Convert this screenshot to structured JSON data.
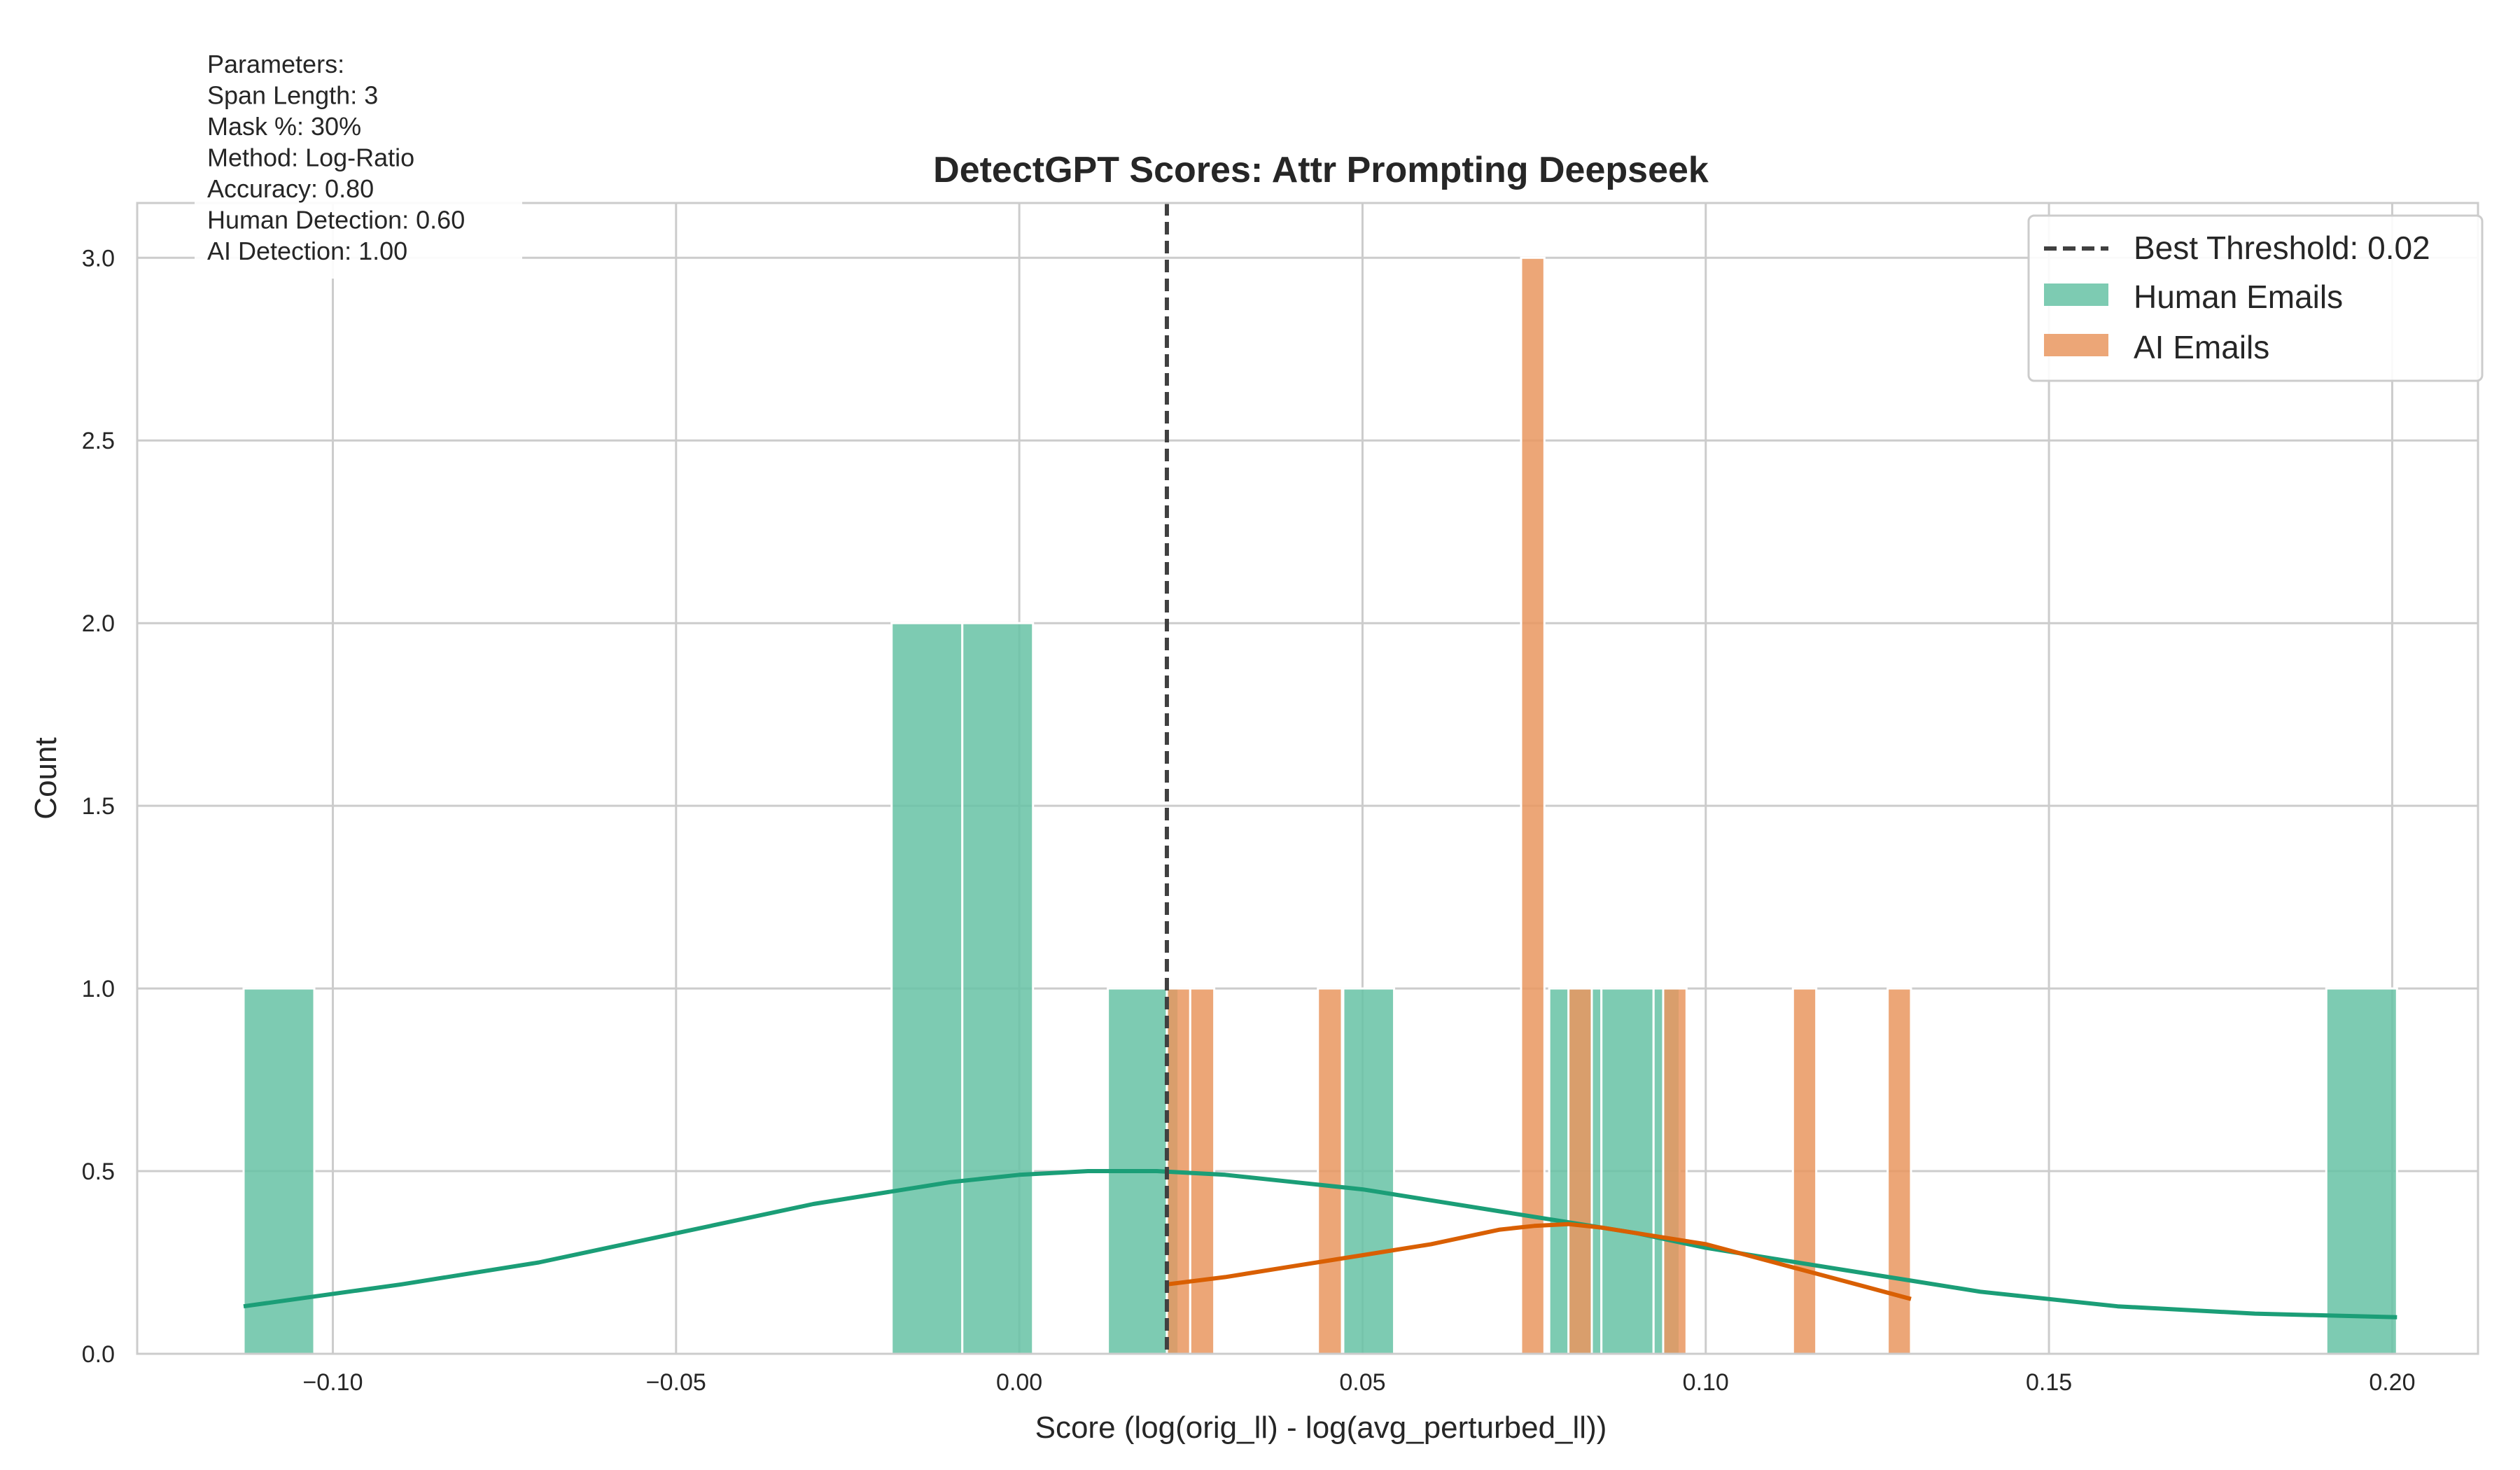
{
  "chart_data": {
    "type": "bar",
    "title": "DetectGPT Scores: Attr Prompting Deepseek",
    "xlabel": "Score (log(orig_ll) - log(avg_perturbed_ll))",
    "ylabel": "Count",
    "xlim": [
      -0.1285,
      0.2125
    ],
    "ylim": [
      0,
      3.15
    ],
    "grid": true,
    "legend_position": "top-right",
    "x_ticks": [
      -0.1,
      -0.05,
      0.0,
      0.05,
      0.1,
      0.15,
      0.2
    ],
    "x_tick_labels": [
      "−0.10",
      "−0.05",
      "0.00",
      "0.05",
      "0.10",
      "0.15",
      "0.20"
    ],
    "y_ticks": [
      0.0,
      0.5,
      1.0,
      1.5,
      2.0,
      2.5,
      3.0
    ],
    "y_tick_labels": [
      "0.0",
      "0.5",
      "1.0",
      "1.5",
      "2.0",
      "2.5",
      "3.0"
    ],
    "threshold": {
      "value": 0.0215,
      "label": "Best Threshold: 0.02",
      "color": "#404040"
    },
    "series": [
      {
        "name": "Human Emails",
        "color": "#66c2a5",
        "kde_color": "#1b9e77",
        "bins": [
          {
            "x0": -0.113,
            "x1": -0.1027,
            "count": 1
          },
          {
            "x0": -0.0186,
            "x1": -0.0083,
            "count": 2
          },
          {
            "x0": -0.0083,
            "x1": 0.002,
            "count": 2
          },
          {
            "x0": 0.0129,
            "x1": 0.0232,
            "count": 1
          },
          {
            "x0": 0.0472,
            "x1": 0.0546,
            "count": 1
          },
          {
            "x0": 0.0772,
            "x1": 0.0848,
            "count": 1
          },
          {
            "x0": 0.0848,
            "x1": 0.0924,
            "count": 1
          },
          {
            "x0": 0.0924,
            "x1": 0.0962,
            "count": 1
          },
          {
            "x0": 0.1904,
            "x1": 0.2007,
            "count": 1
          }
        ],
        "kde": {
          "x": [
            -0.113,
            -0.09,
            -0.07,
            -0.05,
            -0.03,
            -0.01,
            0.0,
            0.01,
            0.02,
            0.03,
            0.04,
            0.05,
            0.06,
            0.07,
            0.08,
            0.09,
            0.1,
            0.11,
            0.12,
            0.13,
            0.14,
            0.16,
            0.18,
            0.2007
          ],
          "y": [
            0.13,
            0.19,
            0.25,
            0.33,
            0.41,
            0.47,
            0.49,
            0.5,
            0.5,
            0.49,
            0.47,
            0.45,
            0.42,
            0.39,
            0.36,
            0.33,
            0.29,
            0.26,
            0.23,
            0.2,
            0.17,
            0.13,
            0.11,
            0.1
          ]
        }
      },
      {
        "name": "AI Emails",
        "color": "#e9965f",
        "kde_color": "#d95f02",
        "bins": [
          {
            "x0": 0.0215,
            "x1": 0.0249,
            "count": 1
          },
          {
            "x0": 0.0249,
            "x1": 0.0284,
            "count": 1
          },
          {
            "x0": 0.0435,
            "x1": 0.047,
            "count": 1
          },
          {
            "x0": 0.0731,
            "x1": 0.0765,
            "count": 3
          },
          {
            "x0": 0.08,
            "x1": 0.0834,
            "count": 1
          },
          {
            "x0": 0.0938,
            "x1": 0.0972,
            "count": 1
          },
          {
            "x0": 0.1127,
            "x1": 0.1161,
            "count": 1
          },
          {
            "x0": 0.1265,
            "x1": 0.1299,
            "count": 1
          }
        ],
        "kde": {
          "x": [
            0.0215,
            0.03,
            0.04,
            0.05,
            0.06,
            0.07,
            0.075,
            0.08,
            0.085,
            0.09,
            0.1,
            0.11,
            0.12,
            0.1299
          ],
          "y": [
            0.19,
            0.21,
            0.24,
            0.27,
            0.3,
            0.34,
            0.35,
            0.355,
            0.345,
            0.33,
            0.3,
            0.25,
            0.2,
            0.15
          ]
        }
      }
    ],
    "parameters_box": [
      "Parameters:",
      "Span Length: 3",
      "Mask %: 30%",
      "Method: Log-Ratio",
      "Accuracy: 0.80",
      "Human Detection: 0.60",
      "AI Detection: 1.00"
    ]
  }
}
